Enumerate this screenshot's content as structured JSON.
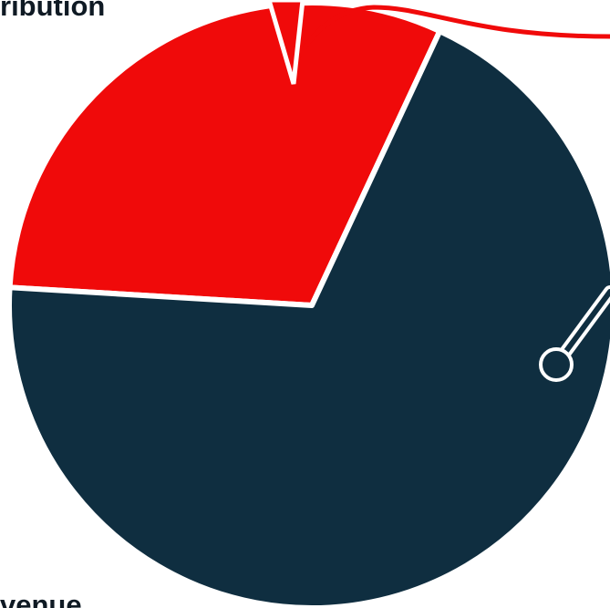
{
  "chart_data": {
    "type": "pie",
    "title": "",
    "labels_visible": [
      "ribution",
      "venue"
    ],
    "slices": [
      {
        "label": "",
        "value": 31,
        "color": "#f00a0a"
      },
      {
        "label": "",
        "value": 69,
        "color": "#0f2e40"
      }
    ],
    "colors": {
      "separator": "#ffffff",
      "background": "#ffffff",
      "annotation_red": "#f00a0a",
      "annotation_marker": "#ffffff"
    }
  }
}
